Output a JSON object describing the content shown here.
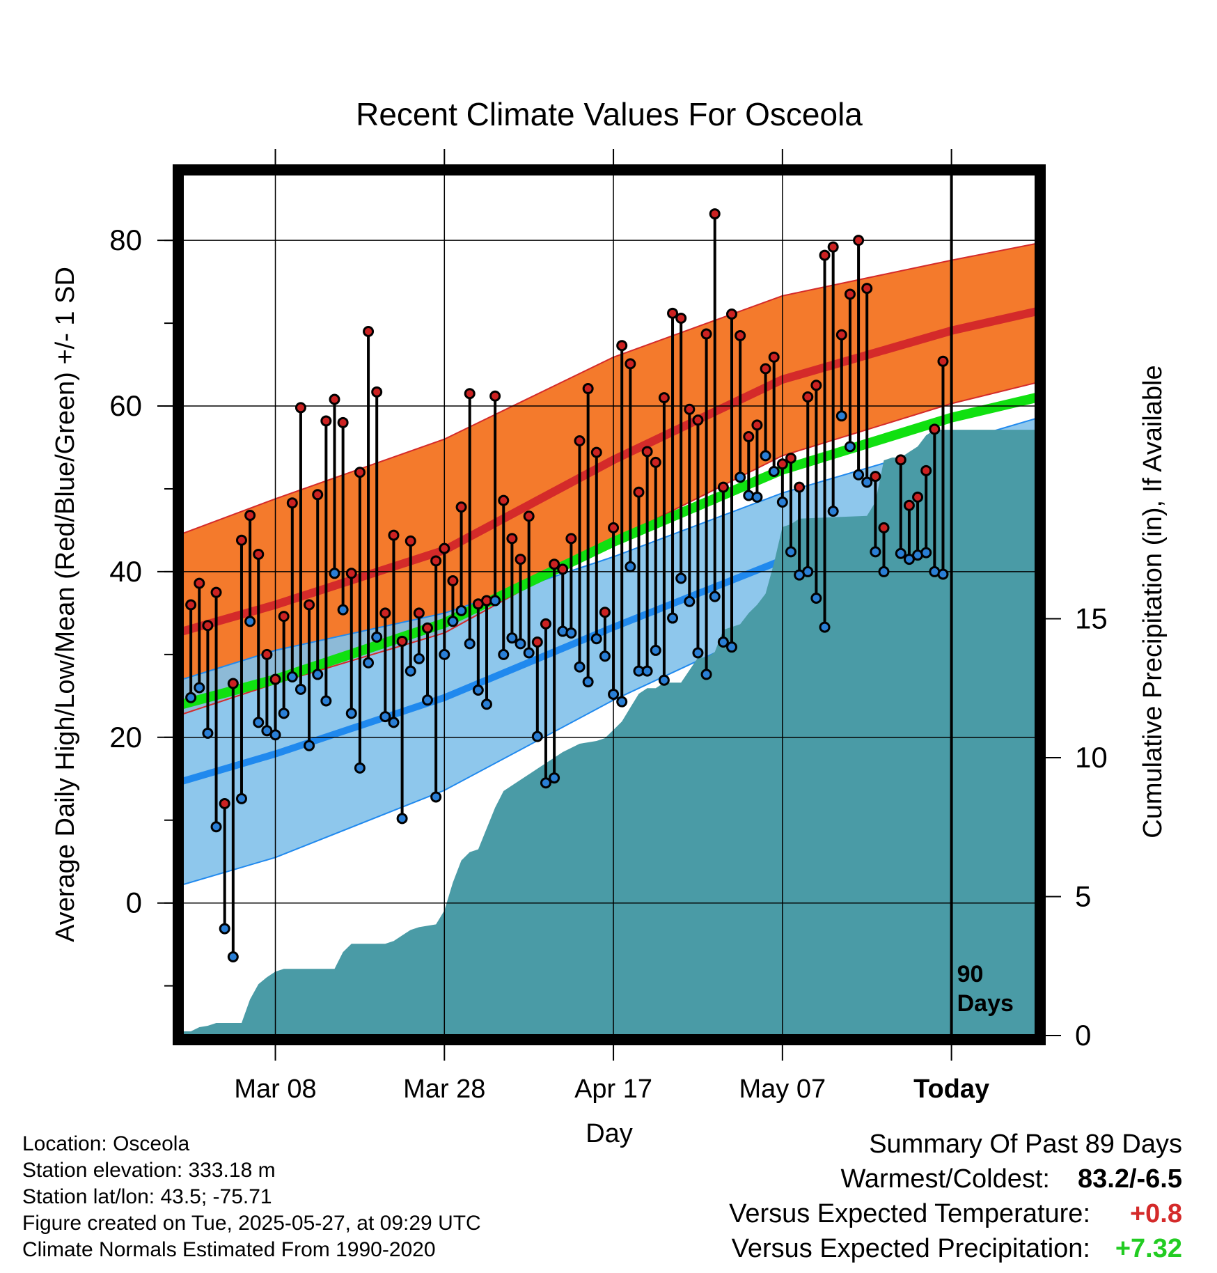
{
  "chart_data": {
    "type": "line",
    "title": "Recent Climate Values For Osceola",
    "xlabel": "Day",
    "ylabel": "Average Daily High/Low/Mean (Red/Blue/Green) +/- 1 SD",
    "y2label": "Cumulative Precipitation (in), If Available",
    "x_domain_days": [
      -1,
      100
    ],
    "ylim": [
      -16,
      88
    ],
    "y2lim": [
      0,
      31
    ],
    "grid": true,
    "x_ticks": [
      {
        "day": 10,
        "label": "Mar 08"
      },
      {
        "day": 30,
        "label": "Mar 28"
      },
      {
        "day": 50,
        "label": "Apr 17"
      },
      {
        "day": 70,
        "label": "May 07"
      },
      {
        "day": 90,
        "label": "Today"
      }
    ],
    "y_ticks": [
      0,
      20,
      40,
      60,
      80
    ],
    "y2_ticks": [
      0,
      5,
      10,
      15
    ],
    "today_marker": {
      "day": 90,
      "label_line1": "90",
      "label_line2": "Days"
    },
    "colors": {
      "high_band": "#f47a2c",
      "high_mean": "#d42a2a",
      "high_edge": "#d42a2a",
      "low_band": "#82c1ea",
      "low_mean": "#2089ee",
      "low_edge": "#2089ee",
      "mean_band": "#10e010",
      "precip": "#4a9ba6",
      "high_dot": "#cc2222",
      "low_dot": "#2a7fd6"
    },
    "normals": {
      "day": [
        -1,
        10,
        30,
        50,
        70,
        90,
        100
      ],
      "high_mean": [
        32.8,
        36.0,
        42.6,
        53.5,
        63.2,
        69.1,
        71.4
      ],
      "high_upper": [
        44.6,
        48.8,
        56.0,
        65.9,
        73.3,
        77.6,
        79.6
      ],
      "high_lower": [
        22.8,
        26.5,
        32.6,
        43.8,
        54.0,
        60.3,
        62.8
      ],
      "low_mean": [
        14.7,
        18.0,
        24.8,
        33.3,
        41.4,
        48.2,
        51.1
      ],
      "low_upper": [
        27.0,
        30.5,
        35.0,
        41.8,
        49.5,
        55.5,
        58.5
      ],
      "low_lower": [
        2.2,
        5.5,
        13.6,
        24.5,
        34.0,
        41.0,
        44.2
      ],
      "mean_mean": [
        24.0,
        27.0,
        33.8,
        43.6,
        52.3,
        58.6,
        61.0
      ]
    },
    "series": [
      {
        "name": "High",
        "values": [
          36.0,
          38.6,
          33.5,
          37.5,
          12.0,
          26.5,
          43.8,
          46.8,
          42.1,
          30.0,
          27.0,
          34.6,
          48.3,
          59.8,
          36.0,
          49.3,
          58.2,
          60.8,
          58.0,
          39.8,
          52.0,
          69.0,
          61.7,
          35.0,
          44.4,
          31.6,
          43.7,
          35.0,
          33.2,
          41.3,
          42.8,
          38.9,
          47.8,
          61.5,
          36.1,
          36.5,
          61.2,
          48.6,
          44.0,
          41.5,
          46.7,
          31.5,
          33.7,
          40.9,
          40.3,
          44.0,
          55.8,
          62.1,
          54.4,
          35.1,
          45.3,
          67.3,
          65.1,
          49.6,
          54.5,
          53.2,
          61.0,
          71.2,
          70.6,
          59.6,
          58.3,
          68.7,
          83.2,
          50.2,
          71.1,
          68.5,
          56.3,
          57.7,
          64.5,
          65.9,
          53.0,
          53.7,
          50.2,
          61.1,
          62.5,
          78.2,
          79.2,
          68.6,
          73.5,
          80.0,
          74.2,
          51.5,
          45.3,
          null,
          53.5,
          48.0,
          49.0,
          52.2,
          57.2,
          65.4
        ]
      },
      {
        "name": "Low",
        "values": [
          24.8,
          26.0,
          20.5,
          9.2,
          -3.1,
          -6.5,
          12.6,
          34.0,
          21.8,
          20.8,
          20.3,
          22.9,
          27.3,
          25.8,
          19.0,
          27.6,
          24.4,
          39.8,
          35.4,
          22.9,
          16.3,
          29.0,
          32.1,
          22.5,
          21.8,
          10.2,
          28.0,
          29.5,
          24.5,
          12.8,
          30.0,
          34.0,
          35.3,
          31.3,
          25.7,
          24.0,
          36.5,
          30.0,
          32.0,
          31.3,
          30.2,
          20.1,
          14.5,
          15.1,
          32.8,
          32.6,
          28.5,
          26.7,
          31.9,
          29.8,
          25.2,
          24.3,
          40.6,
          28.0,
          28.0,
          30.5,
          26.9,
          34.4,
          39.2,
          36.4,
          30.2,
          27.6,
          37.0,
          31.5,
          30.9,
          51.4,
          49.2,
          49.0,
          54.0,
          52.1,
          48.4,
          42.4,
          39.6,
          40.0,
          36.8,
          33.3,
          47.3,
          58.8,
          55.1,
          51.7,
          50.8,
          42.4,
          40.0,
          null,
          42.2,
          41.5,
          42.0,
          42.3,
          40.0,
          39.7
        ]
      },
      {
        "name": "Cumulative Precipitation",
        "points": [
          [
            -1,
            0.15
          ],
          [
            0,
            0.15
          ],
          [
            1,
            0.3
          ],
          [
            2,
            0.35
          ],
          [
            3,
            0.45
          ],
          [
            5,
            0.45
          ],
          [
            6,
            0.45
          ],
          [
            7,
            1.3
          ],
          [
            8,
            1.85
          ],
          [
            9,
            2.1
          ],
          [
            10,
            2.3
          ],
          [
            11,
            2.4
          ],
          [
            17,
            2.4
          ],
          [
            18,
            3.0
          ],
          [
            19,
            3.3
          ],
          [
            23,
            3.3
          ],
          [
            24,
            3.4
          ],
          [
            25,
            3.6
          ],
          [
            26,
            3.8
          ],
          [
            27,
            3.9
          ],
          [
            28,
            3.95
          ],
          [
            29,
            4.0
          ],
          [
            30,
            4.5
          ],
          [
            31,
            5.5
          ],
          [
            32,
            6.3
          ],
          [
            33,
            6.6
          ],
          [
            34,
            6.7
          ],
          [
            36,
            8.2
          ],
          [
            37,
            8.8
          ],
          [
            38,
            9.0
          ],
          [
            39,
            9.2
          ],
          [
            40,
            9.4
          ],
          [
            41,
            9.6
          ],
          [
            42,
            9.8
          ],
          [
            43,
            10.0
          ],
          [
            44,
            10.2
          ],
          [
            46,
            10.5
          ],
          [
            48,
            10.6
          ],
          [
            49,
            10.7
          ],
          [
            50,
            11.0
          ],
          [
            51,
            11.3
          ],
          [
            52,
            11.8
          ],
          [
            53,
            12.3
          ],
          [
            54,
            12.5
          ],
          [
            55,
            12.5
          ],
          [
            56,
            12.7
          ],
          [
            58,
            12.7
          ],
          [
            60,
            13.6
          ],
          [
            61,
            13.6
          ],
          [
            62,
            13.8
          ],
          [
            63,
            14.6
          ],
          [
            64,
            14.7
          ],
          [
            65,
            14.8
          ],
          [
            66,
            15.2
          ],
          [
            67,
            15.5
          ],
          [
            68,
            15.9
          ],
          [
            69,
            17.0
          ],
          [
            70,
            18.3
          ],
          [
            71,
            18.4
          ],
          [
            72,
            18.6
          ],
          [
            80,
            18.7
          ],
          [
            81,
            19.2
          ],
          [
            82,
            20.7
          ],
          [
            83,
            20.8
          ],
          [
            84,
            20.8
          ],
          [
            85,
            21.0
          ],
          [
            86,
            21.2
          ],
          [
            87,
            21.6
          ],
          [
            88,
            21.8
          ],
          [
            90,
            21.8
          ],
          [
            100,
            21.8
          ]
        ]
      }
    ]
  },
  "info": {
    "location": "Location: Osceola",
    "elevation": "Station elevation: 333.18 m",
    "latlon": "Station lat/lon: 43.5; -75.71",
    "created": "Figure created on Tue, 2025-05-27, at 09:29 UTC",
    "normals": "Climate Normals Estimated From 1990-2020"
  },
  "summary": {
    "title": "Summary Of Past 89 Days",
    "warmest_coldest_label": "Warmest/Coldest:",
    "warmest_coldest_value": "83.2/-6.5",
    "temp_label": "Versus Expected Temperature:",
    "temp_value": "+0.8",
    "temp_color": "#d42a2a",
    "precip_label": "Versus Expected Precipitation:",
    "precip_value": "+7.32",
    "precip_color": "#22cc22"
  }
}
